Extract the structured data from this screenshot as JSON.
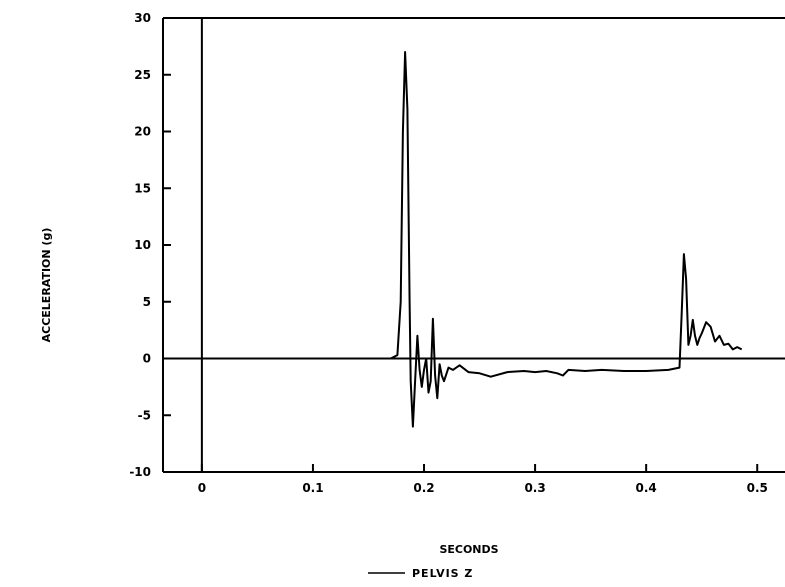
{
  "chart_data": {
    "type": "line",
    "xlabel": "SECONDS",
    "ylabel": "ACCELERATION (g)",
    "xlim": [
      -0.035,
      0.525
    ],
    "ylim": [
      -10,
      30
    ],
    "x_ticks": [
      0,
      0.1,
      0.2,
      0.3,
      0.4,
      0.5
    ],
    "x_tick_labels": [
      "0",
      "0.1",
      "0.2",
      "0.3",
      "0.4",
      "0.5"
    ],
    "y_ticks": [
      -10,
      -5,
      0,
      5,
      10,
      15,
      20,
      25,
      30
    ],
    "y_tick_labels": [
      "-10",
      "-5",
      "0",
      "5",
      "10",
      "15",
      "20",
      "25",
      "30"
    ],
    "grid": false,
    "legend": {
      "placement": "bottom-center"
    },
    "series": [
      {
        "name": "PELVIS Z",
        "color": "#000000",
        "x": [
          0,
          0.17,
          0.176,
          0.179,
          0.181,
          0.183,
          0.185,
          0.187,
          0.188,
          0.19,
          0.192,
          0.194,
          0.196,
          0.198,
          0.2,
          0.202,
          0.204,
          0.206,
          0.208,
          0.21,
          0.212,
          0.214,
          0.216,
          0.218,
          0.222,
          0.226,
          0.232,
          0.24,
          0.25,
          0.26,
          0.275,
          0.29,
          0.3,
          0.31,
          0.32,
          0.325,
          0.33,
          0.345,
          0.36,
          0.38,
          0.4,
          0.42,
          0.43,
          0.432,
          0.434,
          0.436,
          0.438,
          0.44,
          0.442,
          0.444,
          0.446,
          0.448,
          0.45,
          0.454,
          0.458,
          0.462,
          0.466,
          0.47,
          0.474,
          0.478,
          0.482,
          0.486
        ],
        "y": [
          0,
          0,
          0.3,
          5,
          20,
          27,
          22,
          5,
          -2,
          -6,
          -2,
          2,
          -1,
          -2.5,
          -1,
          0,
          -3,
          -2,
          3.5,
          -1.5,
          -3.5,
          -0.5,
          -1.5,
          -2,
          -0.8,
          -1,
          -0.6,
          -1.2,
          -1.3,
          -1.6,
          -1.2,
          -1.1,
          -1.2,
          -1.1,
          -1.3,
          -1.5,
          -1.0,
          -1.1,
          -1.0,
          -1.1,
          -1.1,
          -1.0,
          -0.8,
          4,
          9.2,
          7,
          1.2,
          2,
          3.4,
          2,
          1.2,
          1.8,
          2.2,
          3.2,
          2.8,
          1.5,
          2,
          1.2,
          1.3,
          0.8,
          1.0,
          0.8
        ]
      }
    ]
  }
}
